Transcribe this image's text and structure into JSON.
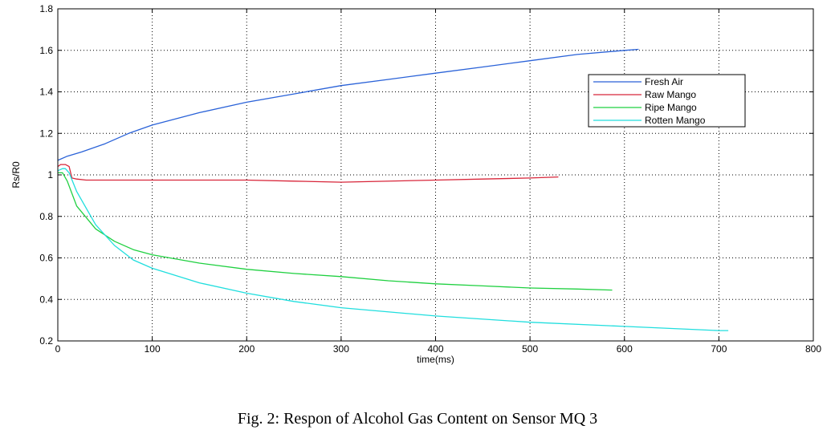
{
  "chart_data": {
    "type": "line",
    "xlabel": "time(ms)",
    "ylabel": "Rs/R0",
    "xlim": [
      0,
      800
    ],
    "ylim": [
      0.2,
      1.8
    ],
    "xticks": [
      "0",
      "100",
      "200",
      "300",
      "400",
      "500",
      "600",
      "700",
      "800"
    ],
    "yticks": [
      "0.2",
      "0.4",
      "0.6",
      "0.8",
      "1",
      "1.2",
      "1.4",
      "1.6",
      "1.8"
    ],
    "grid": true,
    "legend_position": "top-right",
    "series": [
      {
        "name": "Fresh Air",
        "color": "#2a62d8",
        "x": [
          0,
          10,
          25,
          50,
          75,
          100,
          150,
          200,
          250,
          300,
          350,
          400,
          450,
          500,
          550,
          600,
          615
        ],
        "y": [
          1.07,
          1.09,
          1.11,
          1.15,
          1.2,
          1.24,
          1.3,
          1.35,
          1.39,
          1.43,
          1.46,
          1.49,
          1.52,
          1.55,
          1.58,
          1.6,
          1.605
        ]
      },
      {
        "name": "Raw Mango",
        "color": "#d8263a",
        "x": [
          0,
          3,
          8,
          12,
          15,
          20,
          30,
          100,
          200,
          250,
          300,
          400,
          450,
          500,
          530
        ],
        "y": [
          1.04,
          1.05,
          1.05,
          1.04,
          0.985,
          0.98,
          0.975,
          0.975,
          0.975,
          0.97,
          0.965,
          0.975,
          0.98,
          0.985,
          0.99
        ]
      },
      {
        "name": "Ripe Mango",
        "color": "#1fd040",
        "x": [
          0,
          5,
          10,
          20,
          40,
          60,
          80,
          100,
          150,
          200,
          250,
          300,
          350,
          400,
          450,
          500,
          550,
          587
        ],
        "y": [
          1.01,
          1.01,
          0.97,
          0.85,
          0.74,
          0.68,
          0.64,
          0.615,
          0.575,
          0.545,
          0.525,
          0.51,
          0.49,
          0.475,
          0.465,
          0.455,
          0.45,
          0.445
        ]
      },
      {
        "name": "Rotten Mango",
        "color": "#20dede",
        "x": [
          0,
          5,
          8,
          12,
          20,
          40,
          60,
          80,
          100,
          150,
          200,
          250,
          300,
          400,
          500,
          600,
          700,
          710
        ],
        "y": [
          1.02,
          1.03,
          1.03,
          1.01,
          0.92,
          0.76,
          0.66,
          0.59,
          0.55,
          0.48,
          0.43,
          0.39,
          0.36,
          0.32,
          0.29,
          0.27,
          0.25,
          0.25
        ]
      }
    ]
  },
  "caption": "Fig. 2: Respon of Alcohol Gas Content on Sensor MQ 3"
}
